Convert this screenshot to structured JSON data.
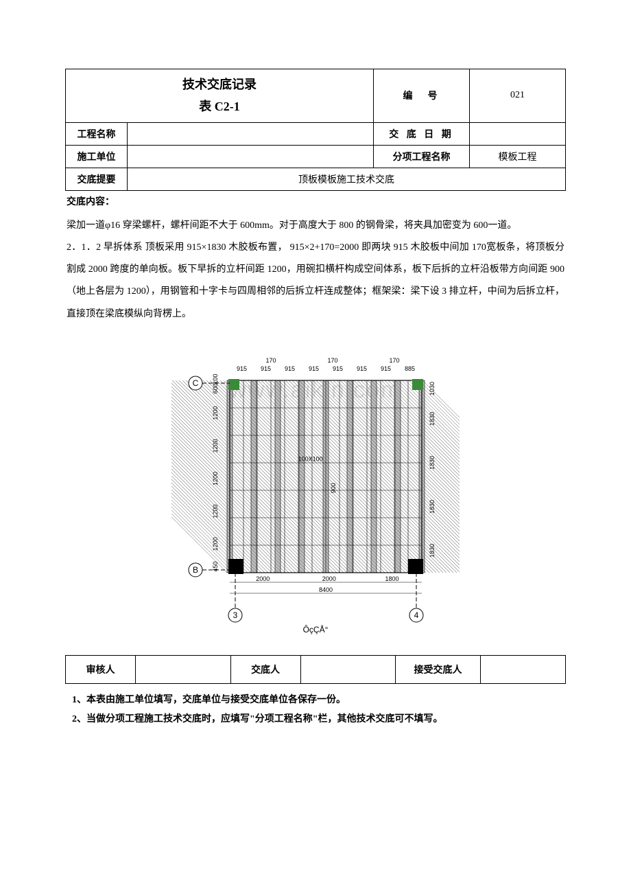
{
  "header": {
    "title_line1": "技术交底记录",
    "title_line2": "表 C2-1",
    "number_label": "编　号",
    "number_value": "021"
  },
  "info_rows": {
    "project_name_label": "工程名称",
    "project_name_value": "",
    "disclosure_date_label": "交 底 日 期",
    "disclosure_date_value": "",
    "construction_unit_label": "施工单位",
    "construction_unit_value": "",
    "sub_project_label": "分项工程名称",
    "sub_project_value": "模板工程",
    "outline_label": "交底提要",
    "outline_value": "顶板模板施工技术交底"
  },
  "content": {
    "label": "交底内容：",
    "para1": "梁加一道φ16 穿梁螺杆，螺杆间距不大于 600mm。对于高度大于 800 的钢骨梁，将夹具加密变为 600一道。",
    "para2": "2．1．2 早拆体系 顶板采用 915×1830 木胶板布置， 915×2+170=2000 即两块 915 木胶板中间加 170宽板条，将顶板分割成 2000 跨度的单向板。板下早拆的立杆间距 1200，用碗扣横杆构成空间体系，板下后拆的立杆沿板带方向间距 900（地上各层为 1200），用钢管和十字卡与四周相邻的后拆立杆连成整体；框架梁：梁下设 3 排立杆，中间为后拆立杆，直接顶在梁底模纵向背楞上。"
  },
  "diagram": {
    "type": "structural-plan",
    "caption": "ÔçÇÅ°",
    "axis_labels": {
      "top_left": "C",
      "bottom_left": "B",
      "bottom_3": "3",
      "bottom_4": "4"
    },
    "top_dims": [
      "170",
      "170",
      "170"
    ],
    "top_sub_dims": [
      "915",
      "915",
      "915",
      "915",
      "915",
      "915",
      "915",
      "885"
    ],
    "left_dims_top": "100",
    "left_dims": [
      "600",
      "1200",
      "1200",
      "1200",
      "1200",
      "1200",
      "450"
    ],
    "right_dims_top": "1030",
    "right_dims": [
      "1830",
      "1830",
      "1830",
      "1830"
    ],
    "bottom_dims": [
      "2000",
      "2000",
      "1800"
    ],
    "bottom_total": "8400",
    "inner_labels": [
      "100X100",
      "900"
    ],
    "watermark_text": "www.aikin.com",
    "colors": {
      "line": "#000000",
      "hatch": "#333333",
      "col_fill": "#000000",
      "col_green": "#3a8a3a",
      "background": "#ffffff",
      "watermark": "#c8c8c8"
    },
    "line_width_thin": 0.6,
    "line_width_med": 1.2,
    "line_width_thick": 7,
    "font_size_dim": 9
  },
  "footer": {
    "reviewer_label": "审核人",
    "reviewer_value": "",
    "discloser_label": "交底人",
    "discloser_value": "",
    "receiver_label": "接受交底人",
    "receiver_value": ""
  },
  "notes": {
    "n1": "1、本表由施工单位填写，交底单位与接受交底单位各保存一份。",
    "n2": "2、当做分项工程施工技术交底时，应填写\"分项工程名称\"栏，其他技术交底可不填写。"
  }
}
